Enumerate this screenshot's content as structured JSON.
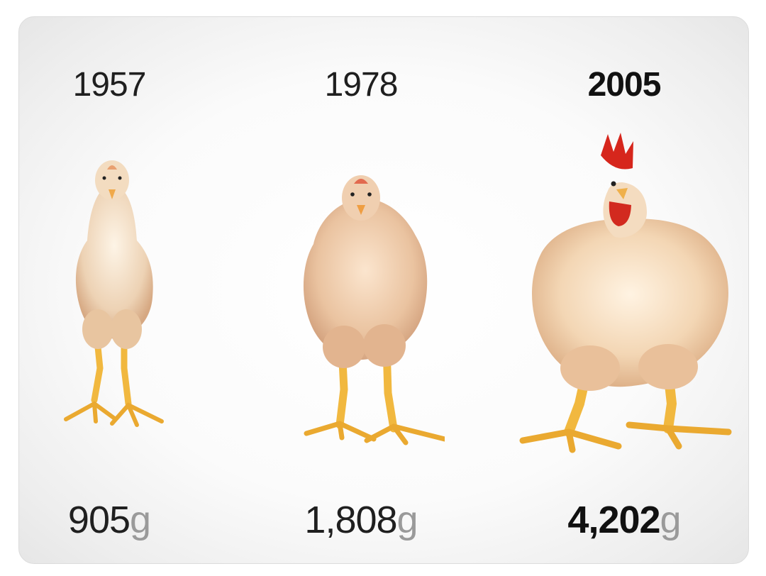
{
  "panels": [
    {
      "year": "1957",
      "weight_value": "905",
      "weight_unit": "g"
    },
    {
      "year": "1978",
      "weight_value": "1,808",
      "weight_unit": "g"
    },
    {
      "year": "2005",
      "weight_value": "4,202",
      "weight_unit": "g"
    }
  ],
  "colors": {
    "feather": "#f2dcc2",
    "feather_shade": "#d9b08e",
    "leg": "#f0b33c",
    "comb": "#d6261c",
    "background": "#f7f7f7",
    "text": "#1f1f1f",
    "unit_text": "#9a9a9a"
  }
}
